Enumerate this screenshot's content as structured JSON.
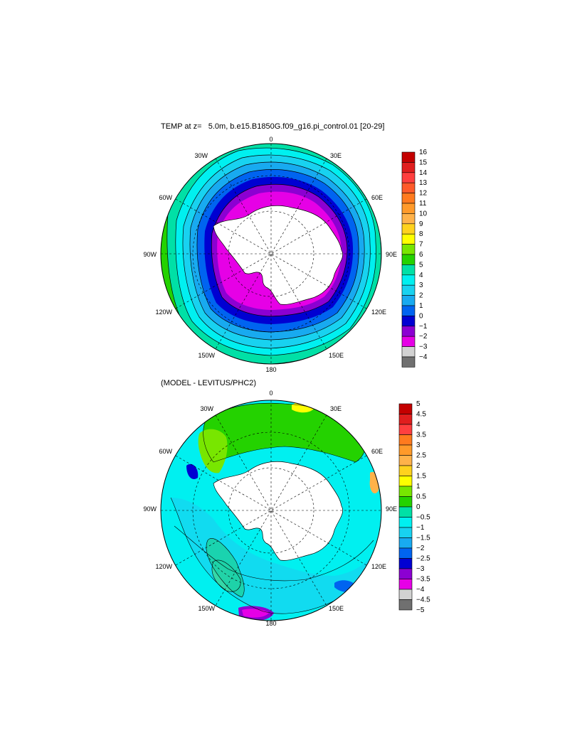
{
  "top_panel": {
    "title": "TEMP at z=   5.0m, b.e15.B1850G.f09_g16.pi_control.01 [20-29]",
    "lon_labels": {
      "top": "0",
      "tl": "30W",
      "tr": "30E",
      "ul": "60W",
      "ur": "60E",
      "left": "90W",
      "right": "90E",
      "ll": "120W",
      "lr": "120E",
      "bl": "150W",
      "br": "150E",
      "bottom": "180"
    },
    "colorbar": {
      "labels": [
        "16",
        "15",
        "14",
        "13",
        "12",
        "11",
        "10",
        "9",
        "8",
        "7",
        "6",
        "5",
        "4",
        "3",
        "2",
        "1",
        "0",
        "−1",
        "−2",
        "−3",
        "−4"
      ],
      "colors": [
        "#c40000",
        "#e01e1e",
        "#ff3f3f",
        "#ff5a2a",
        "#ff7a1e",
        "#ff9a2a",
        "#ffb24a",
        "#ffd21e",
        "#ffff00",
        "#78e600",
        "#24d200",
        "#00e0a6",
        "#00f0f0",
        "#18d2f0",
        "#18aaf0",
        "#0064f0",
        "#0000d2",
        "#8c00d2",
        "#e600e6",
        "#d2d2d2",
        "#707070"
      ]
    }
  },
  "bottom_panel": {
    "title": "(MODEL - LEVITUS/PHC2)",
    "lon_labels": {
      "top": "0",
      "tl": "30W",
      "tr": "30E",
      "ul": "60W",
      "ur": "60E",
      "left": "90W",
      "right": "90E",
      "ll": "120W",
      "lr": "120E",
      "bl": "150W",
      "br": "150E",
      "bottom": "180"
    },
    "colorbar": {
      "labels": [
        "5",
        "4.5",
        "4",
        "3.5",
        "3",
        "2.5",
        "2",
        "1.5",
        "1",
        "0.5",
        "0",
        "−0.5",
        "−1",
        "−1.5",
        "−2",
        "−2.5",
        "−3",
        "−3.5",
        "−4",
        "−4.5",
        "−5"
      ],
      "colors": [
        "#c40000",
        "#e01e1e",
        "#ff3f3f",
        "#ff7a1e",
        "#ff9a2a",
        "#ffb24a",
        "#ffd21e",
        "#ffff00",
        "#78e600",
        "#24d200",
        "#00e0a6",
        "#00f0f0",
        "#18d2f0",
        "#18aaf0",
        "#0064f0",
        "#0000d2",
        "#8c00d2",
        "#e600e6",
        "#d2d2d2",
        "#707070"
      ]
    }
  },
  "palette": {
    "land": "#ffffff",
    "frame": "#000000"
  }
}
